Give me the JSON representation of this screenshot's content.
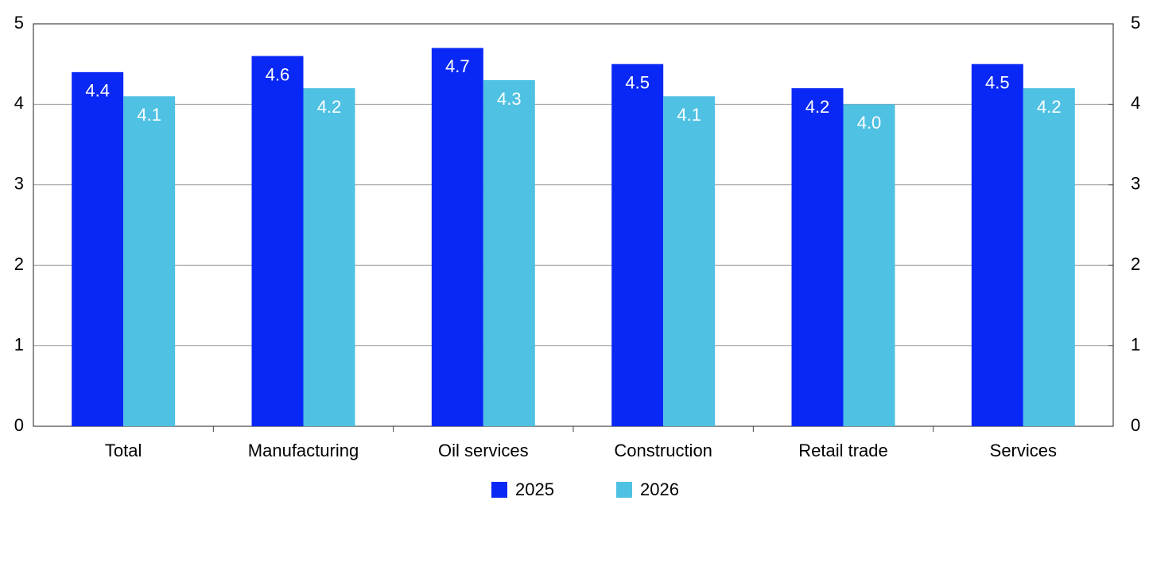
{
  "chart_data": {
    "type": "bar",
    "categories": [
      "Total",
      "Manufacturing",
      "Oil services",
      "Construction",
      "Retail trade",
      "Services"
    ],
    "series": [
      {
        "name": "2025",
        "color": "#0a28f5",
        "values": [
          4.4,
          4.6,
          4.7,
          4.5,
          4.2,
          4.5
        ],
        "value_labels": [
          "4.4",
          "4.6",
          "4.7",
          "4.5",
          "4.2",
          "4.5"
        ]
      },
      {
        "name": "2026",
        "color": "#4fc1e3",
        "values": [
          4.1,
          4.2,
          4.3,
          4.1,
          4.0,
          4.2
        ],
        "value_labels": [
          "4.1",
          "4.2",
          "4.3",
          "4.1",
          "4.0",
          "4.2"
        ]
      }
    ],
    "ylim": [
      0,
      5
    ],
    "yticks": [
      0,
      1,
      2,
      3,
      4,
      5
    ],
    "y2lim": [
      0,
      5
    ],
    "y2ticks": [
      0,
      1,
      2,
      3,
      4,
      5
    ],
    "grid": true,
    "legend": "bottom"
  }
}
